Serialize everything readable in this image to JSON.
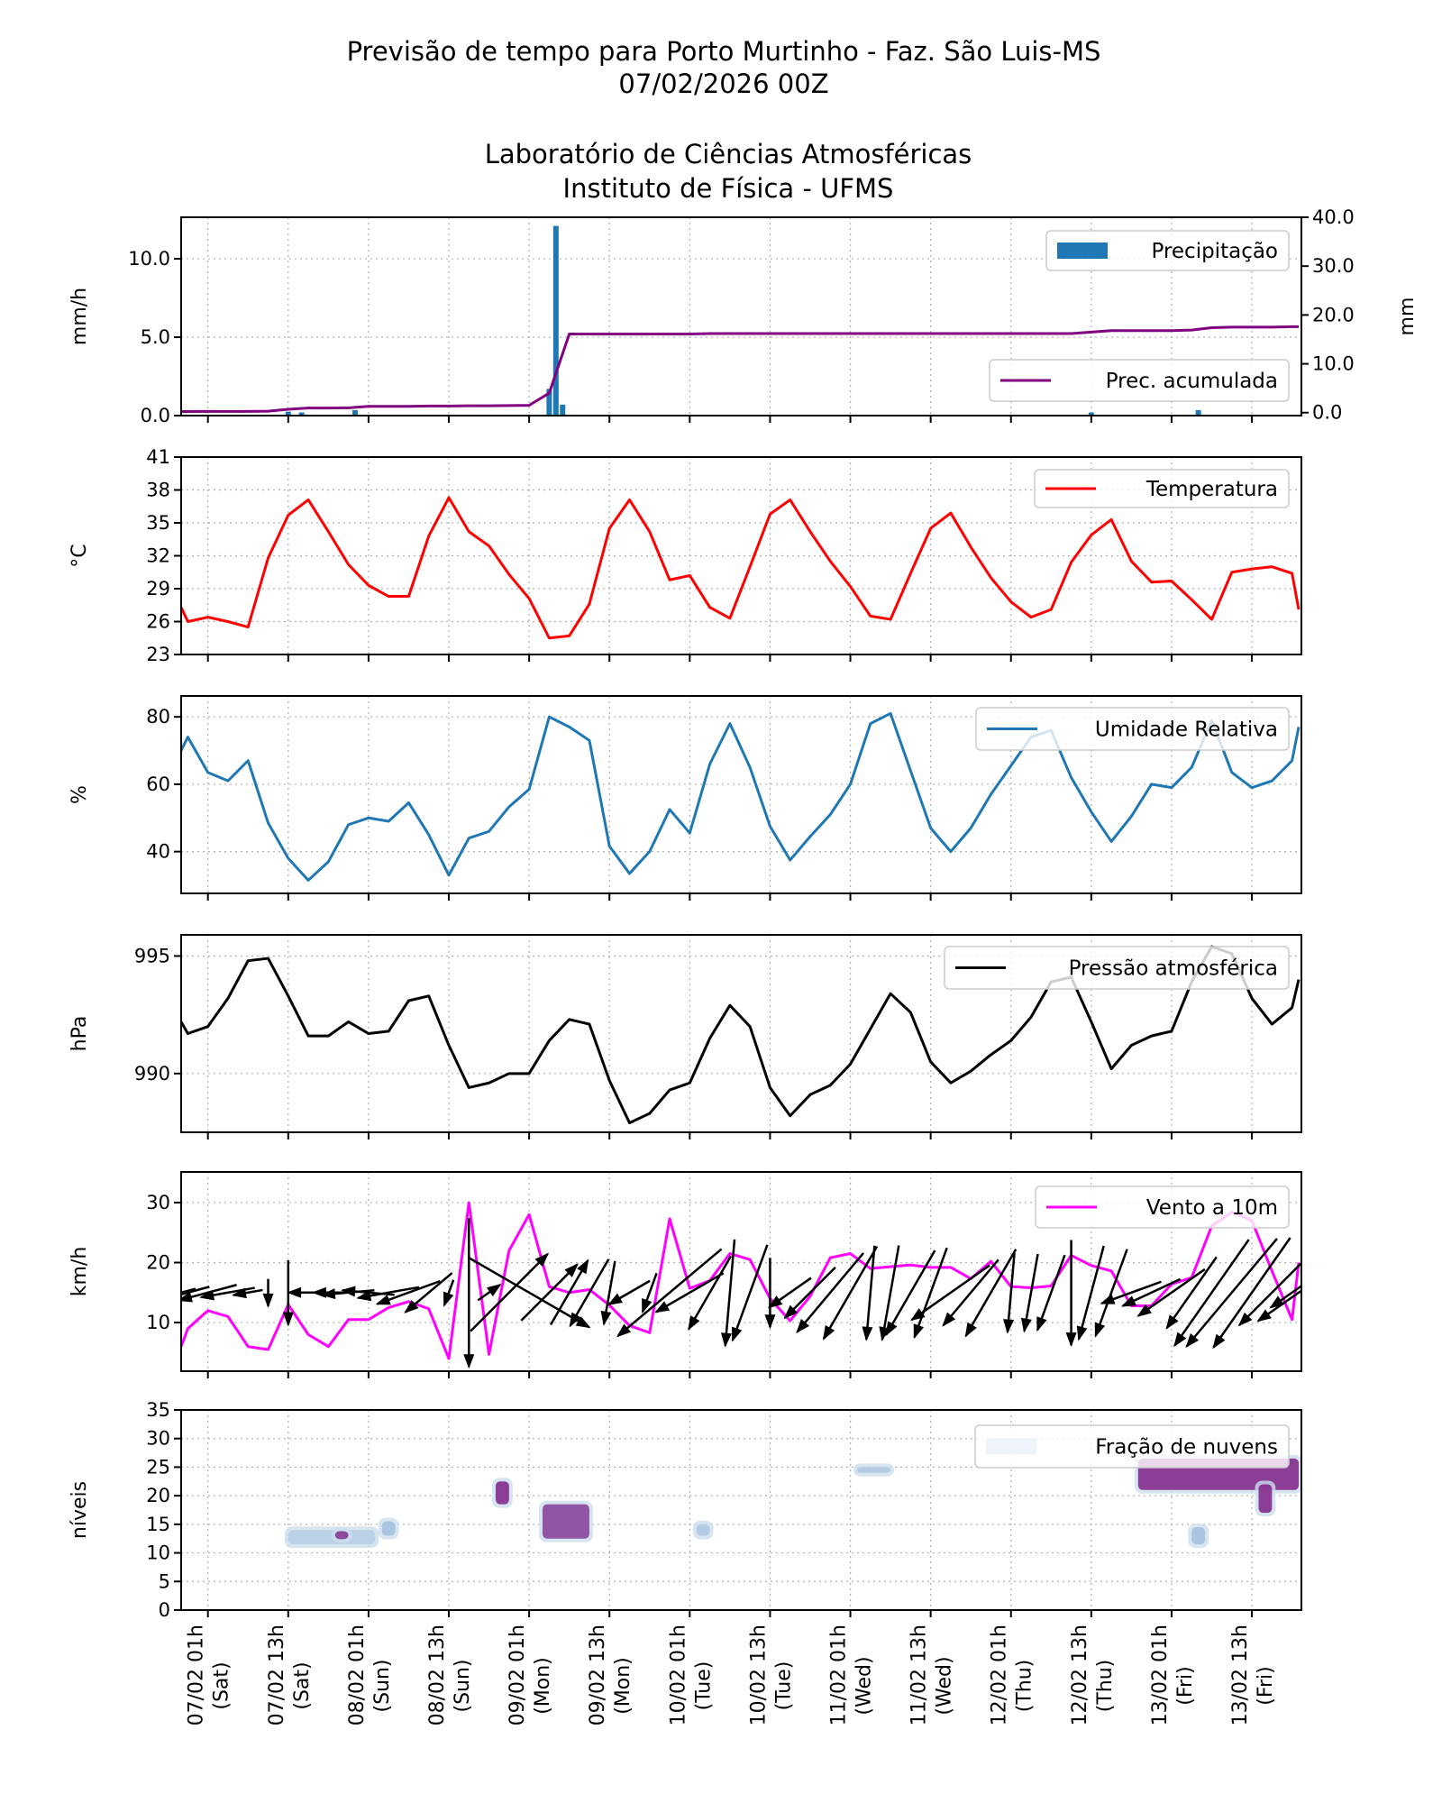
{
  "title": {
    "line1": "Previsão de tempo para Porto Murtinho - Faz. São Luis-MS",
    "line2": "07/02/2026 00Z",
    "line3": "Laboratório de Ciências Atmosféricas",
    "line4": "Instituto de Física - UFMS"
  },
  "x_axis": {
    "ticks": [
      {
        "date": "07/02 01h",
        "day": "(Sat)"
      },
      {
        "date": "07/02 13h",
        "day": "(Sat)"
      },
      {
        "date": "08/02 01h",
        "day": "(Sun)"
      },
      {
        "date": "08/02 13h",
        "day": "(Sun)"
      },
      {
        "date": "09/02 01h",
        "day": "(Mon)"
      },
      {
        "date": "09/02 13h",
        "day": "(Mon)"
      },
      {
        "date": "10/02 01h",
        "day": "(Tue)"
      },
      {
        "date": "10/02 13h",
        "day": "(Tue)"
      },
      {
        "date": "11/02 01h",
        "day": "(Wed)"
      },
      {
        "date": "11/02 13h",
        "day": "(Wed)"
      },
      {
        "date": "12/02 01h",
        "day": "(Thu)"
      },
      {
        "date": "12/02 13h",
        "day": "(Thu)"
      },
      {
        "date": "13/02 01h",
        "day": "(Fri)"
      },
      {
        "date": "13/02 13h",
        "day": "(Fri)"
      }
    ],
    "range": [
      "06/02 21h",
      "13/02 20h"
    ]
  },
  "time": [
    "06/02 21h",
    "06/02 22h",
    "07/02 01h",
    "07/02 04h",
    "07/02 07h",
    "07/02 10h",
    "07/02 13h",
    "07/02 16h",
    "07/02 19h",
    "07/02 22h",
    "08/02 01h",
    "08/02 04h",
    "08/02 07h",
    "08/02 10h",
    "08/02 13h",
    "08/02 16h",
    "08/02 19h",
    "08/02 22h",
    "09/02 01h",
    "09/02 04h",
    "09/02 07h",
    "09/02 10h",
    "09/02 13h",
    "09/02 16h",
    "09/02 19h",
    "09/02 22h",
    "10/02 01h",
    "10/02 04h",
    "10/02 07h",
    "10/02 10h",
    "10/02 13h",
    "10/02 16h",
    "10/02 19h",
    "10/02 22h",
    "11/02 01h",
    "11/02 04h",
    "11/02 07h",
    "11/02 10h",
    "11/02 13h",
    "11/02 16h",
    "11/02 19h",
    "11/02 22h",
    "12/02 01h",
    "12/02 04h",
    "12/02 07h",
    "12/02 10h",
    "12/02 13h",
    "12/02 16h",
    "12/02 19h",
    "12/02 22h",
    "13/02 01h",
    "13/02 04h",
    "13/02 07h",
    "13/02 10h",
    "13/02 13h",
    "13/02 16h",
    "13/02 19h",
    "13/02 20h"
  ],
  "chart_data": [
    {
      "type": "bar",
      "ylabel": "mm/h",
      "ylabel_right": "mm",
      "ylim": [
        0,
        12.65
      ],
      "ylim_right": [
        -0.6,
        40
      ],
      "yticks": [
        "0.0",
        "5.0",
        "10.0"
      ],
      "yticks_right": [
        "0.0",
        "10.0",
        "20.0",
        "30.0",
        "40.0"
      ],
      "grid": true,
      "legend": [
        "top-right",
        "bottom-right"
      ],
      "series": [
        {
          "name": "Precipitação",
          "type": "bar",
          "color": "#1f77b4",
          "points": [
            {
              "t": "07/02 13h",
              "v": 0.25
            },
            {
              "t": "07/02 15h",
              "v": 0.2
            },
            {
              "t": "07/02 23h",
              "v": 0.35
            },
            {
              "t": "09/02 04h",
              "v": 1.7
            },
            {
              "t": "09/02 05h",
              "v": 12.1
            },
            {
              "t": "09/02 06h",
              "v": 0.7
            },
            {
              "t": "12/02 13h",
              "v": 0.2
            },
            {
              "t": "13/02 05h",
              "v": 0.35
            }
          ]
        },
        {
          "name": "Prec. acumulada",
          "type": "line",
          "axis": "right",
          "color": "#800080",
          "values": [
            0.24,
            0.24,
            0.25,
            0.25,
            0.25,
            0.3,
            0.7,
            0.95,
            0.95,
            1.0,
            1.3,
            1.3,
            1.3,
            1.35,
            1.35,
            1.4,
            1.4,
            1.45,
            1.5,
            4.0,
            16.1,
            16.1,
            16.1,
            16.1,
            16.1,
            16.1,
            16.1,
            16.2,
            16.2,
            16.2,
            16.2,
            16.2,
            16.2,
            16.2,
            16.2,
            16.2,
            16.2,
            16.2,
            16.2,
            16.2,
            16.2,
            16.2,
            16.2,
            16.2,
            16.2,
            16.2,
            16.5,
            16.8,
            16.8,
            16.8,
            16.8,
            16.9,
            17.4,
            17.5,
            17.5,
            17.5,
            17.6,
            17.6
          ]
        }
      ]
    },
    {
      "type": "line",
      "ylabel": "°C",
      "ylim": [
        23,
        41
      ],
      "yticks": [
        "23",
        "26",
        "29",
        "32",
        "35",
        "38",
        "41"
      ],
      "grid": true,
      "legend": "top-right",
      "series": [
        {
          "name": "Temperatura",
          "color": "#ff0000",
          "values": [
            27.3,
            26.0,
            26.4,
            26.0,
            25.5,
            31.8,
            35.7,
            37.1,
            34.2,
            31.2,
            29.3,
            28.3,
            28.3,
            33.8,
            37.3,
            34.2,
            32.9,
            30.3,
            28.1,
            24.5,
            24.7,
            27.6,
            34.5,
            37.1,
            34.2,
            29.8,
            30.2,
            27.3,
            26.3,
            31.0,
            35.8,
            37.1,
            34.2,
            31.5,
            29.2,
            26.5,
            26.2,
            30.4,
            34.5,
            35.9,
            32.8,
            30.0,
            27.8,
            26.4,
            27.1,
            31.4,
            33.9,
            35.3,
            31.5,
            29.6,
            29.7,
            28.0,
            26.2,
            30.5,
            30.8,
            31.0,
            30.4,
            27.1
          ]
        }
      ]
    },
    {
      "type": "line",
      "ylabel": "%",
      "ylim": [
        27.6,
        86.2
      ],
      "yticks": [
        "40",
        "60",
        "80"
      ],
      "grid": true,
      "legend": "top-right",
      "series": [
        {
          "name": "Umidade Relativa",
          "color": "#1f77b4",
          "values": [
            70,
            74,
            63.5,
            61,
            67,
            48.5,
            38,
            31.5,
            37,
            48,
            50,
            49,
            54.5,
            45,
            33,
            44,
            46,
            53.3,
            58.5,
            80,
            77,
            73,
            41.6,
            33.5,
            40,
            52.5,
            45.5,
            66,
            78,
            65,
            47.5,
            37.5,
            44.5,
            51,
            60,
            78,
            81,
            64,
            47,
            40,
            47,
            57,
            65.5,
            74,
            76,
            62,
            51.8,
            43,
            50.5,
            60,
            59,
            65,
            79,
            63.5,
            59,
            61,
            67,
            77
          ]
        }
      ]
    },
    {
      "type": "line",
      "ylabel": "hPa",
      "ylim": [
        987.5,
        995.9
      ],
      "yticks": [
        "990",
        "995"
      ],
      "grid": true,
      "legend": "top-right",
      "series": [
        {
          "name": "Pressão atmosférica",
          "color": "#000000",
          "values": [
            992.2,
            991.7,
            992,
            993.2,
            994.8,
            994.9,
            993.3,
            991.6,
            991.6,
            992.2,
            991.7,
            991.8,
            993.1,
            993.3,
            991.2,
            989.4,
            989.6,
            990,
            990,
            991.4,
            992.3,
            992.1,
            989.7,
            987.9,
            988.3,
            989.3,
            989.6,
            991.5,
            992.9,
            992,
            989.4,
            988.2,
            989.1,
            989.5,
            990.4,
            991.9,
            993.4,
            992.6,
            990.5,
            989.6,
            990.1,
            990.8,
            991.4,
            992.4,
            993.9,
            994.1,
            992.2,
            990.2,
            991.2,
            991.6,
            991.8,
            993.9,
            995.4,
            995.1,
            993.2,
            992.1,
            992.8,
            994
          ]
        }
      ]
    },
    {
      "type": "line",
      "ylabel": "km/h",
      "ylim": [
        1.9,
        35.1
      ],
      "yticks": [
        "10",
        "20",
        "30"
      ],
      "grid": true,
      "legend": "top-right",
      "series": [
        {
          "name": "Vento a 10m",
          "color": "#ff00ff",
          "values": [
            6,
            9,
            12,
            11,
            6,
            5.5,
            13,
            8,
            6,
            10.5,
            10.5,
            12.5,
            13.5,
            12.3,
            4,
            30,
            4.7,
            22,
            28,
            16,
            15,
            15.5,
            12.9,
            9.5,
            8.3,
            27.3,
            15.7,
            17,
            21.5,
            20.5,
            14,
            10.3,
            14.4,
            20.8,
            21.5,
            19,
            19.3,
            19.6,
            19.2,
            19.2,
            17.3,
            20.2,
            16,
            15.8,
            16.1,
            21.2,
            19.5,
            18.6,
            12.8,
            12.8,
            16.4,
            17.5,
            26.1,
            28.4,
            27,
            18.6,
            10.5,
            20
          ]
        }
      ],
      "wind_arrows": {
        "color": "#000000",
        "direction_deg": [
          195,
          195,
          195,
          190,
          190,
          270,
          270,
          180,
          180,
          185,
          175,
          190,
          200,
          220,
          250,
          270,
          35,
          45,
          330,
          45,
          60,
          240,
          260,
          210,
          250,
          220,
          210,
          240,
          265,
          250,
          270,
          215,
          225,
          230,
          240,
          265,
          260,
          240,
          250,
          215,
          230,
          240,
          265,
          260,
          250,
          270,
          255,
          250,
          200,
          205,
          215,
          235,
          235,
          230,
          235,
          225,
          215,
          215
        ]
      }
    },
    {
      "type": "heatmap",
      "ylabel": "níveis",
      "ylim": [
        0,
        35
      ],
      "yticks": [
        "0",
        "5",
        "10",
        "15",
        "20",
        "25",
        "30",
        "35"
      ],
      "grid": true,
      "legend": "top-right",
      "series": [
        {
          "name": "Fração de nuvens",
          "color": "#eef4fa"
        }
      ],
      "colormap": [
        "#e0ecf4",
        "#9ebcda",
        "#8c6bb1",
        "#810f7c"
      ],
      "cells": [
        {
          "start": "07/02 13h",
          "end": "08/02 02h",
          "level_min": 11.5,
          "level_max": 14,
          "fraction": 0.2
        },
        {
          "start": "07/02 20h",
          "end": "07/02 22h",
          "level_min": 12.4,
          "level_max": 13.8,
          "fraction": 0.85
        },
        {
          "start": "08/02 03h",
          "end": "08/02 05h",
          "level_min": 13,
          "level_max": 15.5,
          "fraction": 0.3
        },
        {
          "start": "08/02 20h",
          "end": "08/02 22h",
          "level_min": 18.5,
          "level_max": 22.5,
          "fraction": 0.9
        },
        {
          "start": "09/02 03h",
          "end": "09/02 10h",
          "level_min": 12.5,
          "level_max": 18.5,
          "fraction": 0.8
        },
        {
          "start": "10/02 02h",
          "end": "10/02 04h",
          "level_min": 13,
          "level_max": 15,
          "fraction": 0.25
        },
        {
          "start": "11/02 02h",
          "end": "11/02 07h",
          "level_min": 24,
          "level_max": 25,
          "fraction": 0.25
        },
        {
          "start": "12/02 20h",
          "end": "13/02 20h",
          "level_min": 21,
          "level_max": 26.5,
          "fraction": 0.9
        },
        {
          "start": "13/02 14h",
          "end": "13/02 16h",
          "level_min": 17,
          "level_max": 22,
          "fraction": 0.9
        },
        {
          "start": "13/02 04h",
          "end": "13/02 06h",
          "level_min": 11.5,
          "level_max": 14.5,
          "fraction": 0.3
        }
      ]
    }
  ]
}
